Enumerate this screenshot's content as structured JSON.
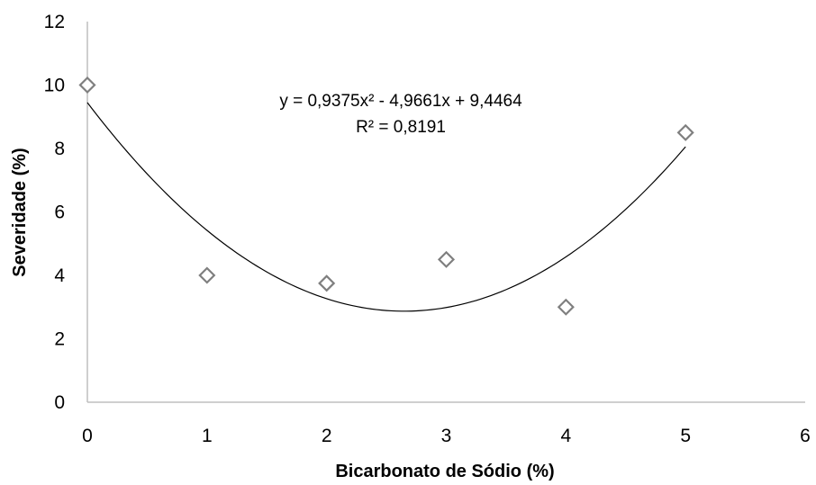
{
  "chart_data": {
    "type": "scatter",
    "xlabel": "Bicarbonato de Sódio (%)",
    "ylabel": "Severidade (%)",
    "xlim": [
      0,
      6
    ],
    "ylim": [
      0,
      12
    ],
    "x_ticks": [
      "0",
      "1",
      "2",
      "3",
      "4",
      "5",
      "6"
    ],
    "y_ticks": [
      "0",
      "2",
      "4",
      "6",
      "8",
      "10",
      "12"
    ],
    "grid": false,
    "points": [
      {
        "x": 0,
        "y": 10.0
      },
      {
        "x": 1,
        "y": 4.0
      },
      {
        "x": 2,
        "y": 3.75
      },
      {
        "x": 3,
        "y": 4.5
      },
      {
        "x": 4,
        "y": 3.0
      },
      {
        "x": 5,
        "y": 8.5
      }
    ],
    "marker": "diamond-open",
    "marker_color": "#7f7f7f",
    "trendline": {
      "type": "polynomial",
      "coefficients": {
        "a": 0.9375,
        "b": -4.9661,
        "c": 9.4464
      },
      "x_range": [
        0,
        5
      ],
      "color": "#000000",
      "equation_label": "y = 0,9375x² - 4,9661x + 9,4464",
      "r2_label": "R² = 0,8191"
    }
  }
}
